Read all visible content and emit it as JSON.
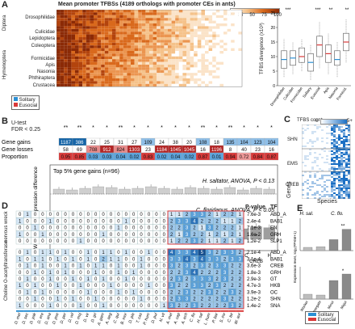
{
  "panelA": {
    "label": "A",
    "title": "Mean promoter TFBSs (4189 orthologs with promoter CEs in ants)",
    "scale_ticks": [
      "0",
      "25",
      "50",
      "75",
      "100"
    ],
    "taxa_left": [
      "Diptera",
      "Lepidoptera",
      "Coleoptera",
      "Hymenoptera"
    ],
    "species_groups": [
      "Drosophilidae",
      "Culicidae",
      "Lepidoptera",
      "Coleoptera",
      "Formicidae",
      "Apis",
      "Nasonia",
      "Phthiraptera",
      "Crustacea"
    ],
    "legend": [
      "Solitary",
      "Eusocial"
    ],
    "legend_colors": [
      "#2a8fd4",
      "#d93a3a"
    ],
    "box_ylabel": "TFBS divergence (x10³)",
    "box_yticks": [
      "0",
      "5",
      "10",
      "15",
      "20",
      "25"
    ],
    "box_xlabels": [
      "Drosophilidae",
      "Culicidae",
      "Formicidae",
      "Solitary",
      "Eusocial",
      "Apis",
      "Nasonia",
      "Formicid."
    ],
    "box_sig": [
      "***",
      "***",
      "**",
      "**"
    ]
  },
  "panelB": {
    "label": "B",
    "utest": "U-test",
    "fdr": "FDR < 0.25",
    "row_gains": "Gene gains",
    "row_losses": "Gene losses",
    "row_prop": "Proportion",
    "gains": [
      "1187",
      "386",
      "22",
      "25",
      "31",
      "27",
      "109",
      "24",
      "38",
      "20",
      "108",
      "18",
      "135",
      "104",
      "123",
      "104"
    ],
    "losses": [
      "58",
      "69",
      "708",
      "912",
      "824",
      "1303",
      "23",
      "1184",
      "1045",
      "1045",
      "16",
      "1196",
      "8",
      "40",
      "23",
      "16"
    ],
    "props": [
      "0.95",
      "0.85",
      "0.03",
      "0.03",
      "0.04",
      "0.02",
      "0.83",
      "0.02",
      "0.04",
      "0.02",
      "0.87",
      "0.01",
      "0.94",
      "0.72",
      "0.84",
      "0.87"
    ],
    "stars": [
      "**",
      "**",
      "*",
      "*",
      "**",
      "*",
      "*",
      "*",
      "*",
      "*",
      "**",
      "*",
      "**",
      "*",
      "*",
      "*"
    ],
    "top5": "Top 5% gene gains (n=96)",
    "hsal": "H. saltator, ANOVA, P < 0.13",
    "cflo": "C. floridanus, ANOVA, P < 0.05",
    "r": "R = 0.65",
    "ylabel": "Worker caste expression difference",
    "tf_labels": [
      "Background",
      "BAB1",
      "GT",
      "TLL",
      "SHN",
      "SLP1",
      "HKB",
      "EMS",
      "GRH",
      "SNA",
      "VND",
      "EN",
      "EIP74EF",
      "DREF",
      "SRC",
      "CREB",
      "H"
    ],
    "xlabel": "Top 16 TFs"
  },
  "panelC": {
    "label": "C",
    "title": "TFBS count",
    "scale_min": "0",
    "scale_max": "5+",
    "rows": [
      "SHN",
      "EMS",
      "CREB"
    ],
    "ylabel": "Genes",
    "xlabel": "Species"
  },
  "panelD": {
    "label": "D",
    "pvalue_header": "P-value",
    "tf_header": "TF",
    "gene1": "nervous wreck",
    "gene2": "Choline O-acetyltransferase",
    "gene1_ids": "(FBgn0015...)",
    "gene2_ids": "(FBgn0000303)",
    "top_rows": [
      {
        "p": "7.6e-3",
        "tf": "ABD_A",
        "vals": [
          0,
          1,
          0,
          0,
          0,
          0,
          0,
          0,
          0,
          0,
          0,
          0,
          0,
          0,
          0,
          0,
          0,
          0,
          0,
          0,
          1,
          1,
          2,
          3,
          3,
          2,
          1,
          2,
          2,
          1
        ]
      },
      {
        "p": "2.4e-4",
        "tf": "BAB1",
        "vals": [
          1,
          0,
          0,
          0,
          1,
          0,
          0,
          0,
          0,
          0,
          0,
          0,
          0,
          0,
          1,
          0,
          0,
          0,
          0,
          0,
          2,
          3,
          3,
          4,
          2,
          2,
          2,
          1,
          1,
          2
        ]
      },
      {
        "p": "7.1e-3",
        "tf": "EN",
        "vals": [
          0,
          0,
          1,
          0,
          0,
          0,
          0,
          0,
          0,
          0,
          0,
          0,
          0,
          1,
          0,
          0,
          0,
          0,
          0,
          0,
          2,
          2,
          3,
          2,
          1,
          3,
          2,
          2,
          2,
          1
        ]
      },
      {
        "p": "1.6e-2",
        "tf": "GRH",
        "vals": [
          1,
          0,
          0,
          1,
          0,
          0,
          0,
          0,
          0,
          0,
          0,
          1,
          0,
          0,
          0,
          0,
          0,
          0,
          0,
          0,
          2,
          1,
          3,
          2,
          2,
          1,
          2,
          1,
          2,
          1
        ]
      },
      {
        "p": "1.2e-2",
        "tf": "SLP1",
        "vals": [
          0,
          0,
          0,
          0,
          0,
          0,
          0,
          0,
          1,
          0,
          0,
          0,
          0,
          0,
          0,
          0,
          0,
          0,
          0,
          0,
          1,
          2,
          2,
          3,
          2,
          1,
          1,
          2,
          1,
          2
        ]
      }
    ],
    "bottom_rows": [
      {
        "p": "2.1e-4",
        "tf": "ABD_A",
        "vals": [
          0,
          1,
          0,
          1,
          1,
          0,
          1,
          0,
          0,
          1,
          0,
          1,
          1,
          0,
          1,
          0,
          0,
          1,
          0,
          0,
          4,
          3,
          3,
          4,
          5,
          3,
          2,
          3,
          3,
          2
        ]
      },
      {
        "p": "3.1e-4",
        "tf": "BAB1",
        "vals": [
          1,
          0,
          1,
          1,
          0,
          1,
          0,
          1,
          0,
          1,
          0,
          2,
          1,
          1,
          0,
          0,
          1,
          0,
          0,
          0,
          3,
          3,
          4,
          3,
          4,
          3,
          3,
          2,
          3,
          3
        ]
      },
      {
        "p": "3.6e-3",
        "tf": "CREB",
        "vals": [
          0,
          1,
          0,
          1,
          0,
          0,
          1,
          0,
          1,
          0,
          1,
          1,
          0,
          1,
          0,
          0,
          1,
          0,
          0,
          0,
          3,
          2,
          3,
          2,
          3,
          2,
          3,
          3,
          2,
          2
        ]
      },
      {
        "p": "1.8e-3",
        "tf": "GRH",
        "vals": [
          0,
          0,
          1,
          0,
          1,
          0,
          1,
          0,
          0,
          0,
          1,
          0,
          0,
          1,
          0,
          1,
          0,
          0,
          0,
          0,
          2,
          2,
          3,
          4,
          2,
          2,
          2,
          3,
          2,
          2
        ]
      },
      {
        "p": "2.9e-3",
        "tf": "GT",
        "vals": [
          0,
          1,
          0,
          0,
          1,
          0,
          0,
          1,
          0,
          1,
          0,
          1,
          0,
          0,
          1,
          0,
          0,
          0,
          0,
          0,
          2,
          3,
          2,
          3,
          3,
          3,
          2,
          3,
          2,
          2
        ]
      },
      {
        "p": "4.7e-3",
        "tf": "HKB",
        "vals": [
          1,
          0,
          1,
          0,
          0,
          1,
          0,
          0,
          1,
          0,
          0,
          0,
          1,
          0,
          0,
          0,
          0,
          1,
          0,
          0,
          3,
          2,
          2,
          3,
          3,
          2,
          3,
          2,
          2,
          2
        ]
      },
      {
        "p": "3.9e-3",
        "tf": "OC",
        "vals": [
          0,
          1,
          0,
          1,
          0,
          0,
          0,
          0,
          0,
          1,
          0,
          0,
          0,
          1,
          0,
          1,
          0,
          0,
          0,
          0,
          2,
          2,
          3,
          2,
          2,
          3,
          2,
          2,
          3,
          2
        ]
      },
      {
        "p": "1.2e-2",
        "tf": "SHN",
        "vals": [
          0,
          0,
          1,
          0,
          0,
          1,
          0,
          1,
          0,
          0,
          1,
          0,
          0,
          0,
          0,
          0,
          1,
          0,
          0,
          0,
          2,
          3,
          3,
          2,
          2,
          2,
          2,
          3,
          2,
          2
        ]
      },
      {
        "p": "1.4e-2",
        "tf": "SNA",
        "vals": [
          1,
          0,
          0,
          0,
          1,
          0,
          0,
          0,
          1,
          0,
          0,
          1,
          0,
          0,
          0,
          0,
          0,
          0,
          0,
          1,
          3,
          2,
          2,
          3,
          2,
          2,
          2,
          2,
          3,
          2
        ]
      }
    ],
    "species": [
      "D. mel",
      "D. sec",
      "D. yak",
      "D. ere",
      "D. ana",
      "D. pse",
      "D. per",
      "D. wil",
      "D. moj",
      "D. vir",
      "D. gri",
      "A. gam",
      "A. aeg",
      "C. qui",
      "B. mor",
      "D. ple",
      "T. cas",
      "P. hum",
      "D. pul",
      "N. vit",
      "A. mel",
      "A. cep",
      "A. ech",
      "C. flo",
      "H. sal",
      "L. hum",
      "P. bar",
      "S. inv",
      "C. bir",
      "W. aur"
    ],
    "legend": [
      "Solitary",
      "Eusocial"
    ]
  },
  "panelE": {
    "label": "E",
    "sp1": "H. sal.",
    "sp2": "C. flo.",
    "ylabel": "Expression level, log₂(FPKM+1)",
    "gene1": "nervous wreck",
    "gene2": "Choline O-acetyltransferase",
    "sig_top": "**",
    "sig_bottom": "*",
    "cats1": [
      "Worker",
      "Gamergate"
    ],
    "cats2": [
      "Minor",
      "Major"
    ],
    "vals_top_h": [
      0.5,
      0.6
    ],
    "vals_top_c": [
      1.7,
      3.3
    ],
    "vals_bot_h": [
      0.6,
      0.5
    ],
    "vals_bot_c": [
      2.3,
      3.1
    ],
    "yticks_top": [
      "0",
      "1",
      "2",
      "3",
      "4",
      "5"
    ],
    "yticks_bot": [
      "0",
      "1",
      "2",
      "3",
      "4"
    ]
  }
}
